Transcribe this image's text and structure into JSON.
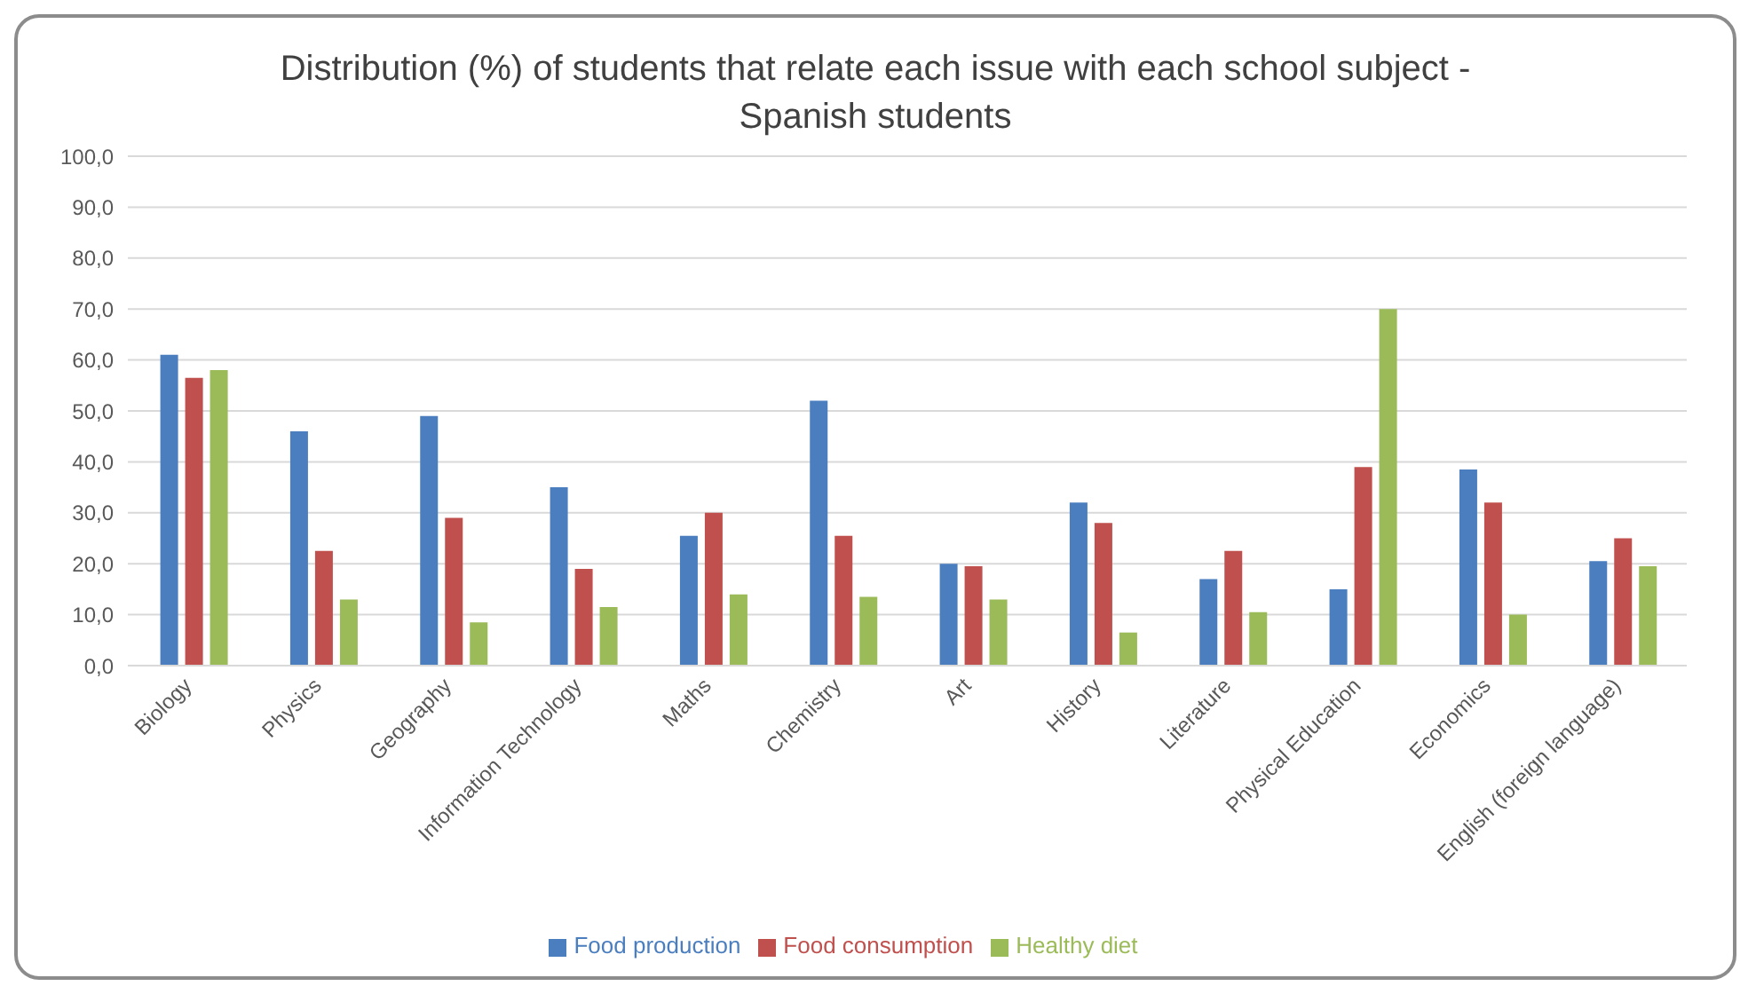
{
  "chart_data": {
    "type": "bar",
    "title": "Distribution (%) of students that relate each issue with each school subject - Spanish students",
    "categories": [
      "Biology",
      "Physics",
      "Geography",
      "Information Technology",
      "Maths",
      "Chemistry",
      "Art",
      "History",
      "Literature",
      "Physical Education",
      "Economics",
      "English (foreign language)"
    ],
    "series": [
      {
        "name": "Food production",
        "color": "#4a7ebf",
        "values": [
          61,
          46,
          49,
          35,
          25.5,
          52,
          20,
          32,
          17,
          15,
          38.5,
          20.5
        ]
      },
      {
        "name": "Food consumption",
        "color": "#c0504d",
        "values": [
          56.5,
          22.5,
          29,
          19,
          30,
          25.5,
          19.5,
          28,
          22.5,
          39,
          32,
          25
        ]
      },
      {
        "name": "Healthy diet",
        "color": "#9bbb59",
        "values": [
          58,
          13,
          8.5,
          11.5,
          14,
          13.5,
          13,
          6.5,
          10.5,
          70,
          10,
          19.5
        ]
      }
    ],
    "ylim": [
      0,
      100
    ],
    "yticks": [
      {
        "value": 0,
        "label": "0,0"
      },
      {
        "value": 10,
        "label": "10,0"
      },
      {
        "value": 20,
        "label": "20,0"
      },
      {
        "value": 30,
        "label": "30,0"
      },
      {
        "value": 40,
        "label": "40,0"
      },
      {
        "value": 50,
        "label": "50,0"
      },
      {
        "value": 60,
        "label": "60,0"
      },
      {
        "value": 70,
        "label": "70,0"
      },
      {
        "value": 80,
        "label": "80,0"
      },
      {
        "value": 90,
        "label": "90,0"
      },
      {
        "value": 100,
        "label": "100,0"
      }
    ],
    "grid": "y",
    "legend": "bottom"
  }
}
